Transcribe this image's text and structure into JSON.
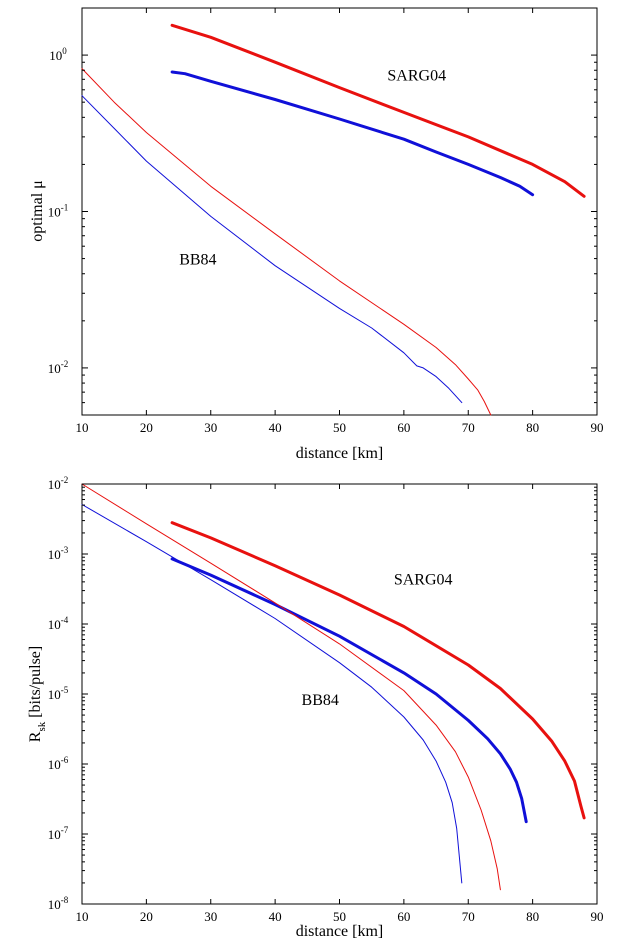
{
  "chart_data": [
    {
      "type": "line",
      "title": "",
      "xlabel": "distance [km]",
      "ylabel": "optimal μ",
      "yscale": "log",
      "xlim": [
        10,
        90
      ],
      "ylim": [
        0.005,
        2
      ],
      "xticks": [
        10,
        20,
        30,
        40,
        50,
        60,
        70,
        80,
        90
      ],
      "yticks": [
        {
          "value": 0.01,
          "base": "10",
          "exp": "-2"
        },
        {
          "value": 0.1,
          "base": "10",
          "exp": "-1"
        },
        {
          "value": 1,
          "base": "10",
          "exp": "0"
        }
      ],
      "grid": false,
      "annotations": [
        {
          "text": "SARG04",
          "x": 62,
          "y": 0.75
        },
        {
          "text": "BB84",
          "x": 28,
          "y": 0.05
        }
      ],
      "series": [
        {
          "color": "#e8110f",
          "width": 3,
          "x": [
            24,
            30,
            40,
            50,
            60,
            70,
            80,
            85,
            88
          ],
          "y": [
            1.55,
            1.3,
            0.9,
            0.62,
            0.43,
            0.3,
            0.2,
            0.155,
            0.125
          ]
        },
        {
          "color": "#1010d8",
          "width": 3,
          "x": [
            24,
            26,
            30,
            40,
            50,
            60,
            65,
            70,
            75,
            78,
            80
          ],
          "y": [
            0.78,
            0.76,
            0.68,
            0.52,
            0.39,
            0.29,
            0.24,
            0.2,
            0.165,
            0.145,
            0.128
          ]
        },
        {
          "color": "#e8110f",
          "width": 1,
          "x": [
            10,
            15,
            20,
            30,
            40,
            50,
            60,
            65,
            68,
            70,
            71.5,
            72.5,
            73.5
          ],
          "y": [
            0.82,
            0.5,
            0.32,
            0.145,
            0.072,
            0.036,
            0.019,
            0.0135,
            0.0105,
            0.0085,
            0.0072,
            0.0061,
            0.005
          ]
        },
        {
          "color": "#1010d8",
          "width": 1,
          "x": [
            10,
            15,
            20,
            30,
            40,
            50,
            55,
            60,
            62,
            63,
            65,
            67,
            69
          ],
          "y": [
            0.55,
            0.34,
            0.21,
            0.093,
            0.045,
            0.024,
            0.018,
            0.0125,
            0.0103,
            0.01,
            0.0088,
            0.0074,
            0.006
          ]
        }
      ]
    },
    {
      "type": "line",
      "title": "",
      "xlabel": "distance [km]",
      "ylabel_main": "R",
      "ylabel_sub": "sk",
      "ylabel_rest": "[bits/pulse]",
      "yscale": "log",
      "xlim": [
        10,
        90
      ],
      "ylim": [
        1e-08,
        0.01
      ],
      "xticks": [
        10,
        20,
        30,
        40,
        50,
        60,
        70,
        80,
        90
      ],
      "yticks": [
        {
          "value": 1e-08,
          "base": "10",
          "exp": "-8"
        },
        {
          "value": 1e-07,
          "base": "10",
          "exp": "-7"
        },
        {
          "value": 1e-06,
          "base": "10",
          "exp": "-6"
        },
        {
          "value": 1e-05,
          "base": "10",
          "exp": "-5"
        },
        {
          "value": 0.0001,
          "base": "10",
          "exp": "-4"
        },
        {
          "value": 0.001,
          "base": "10",
          "exp": "-3"
        },
        {
          "value": 0.01,
          "base": "10",
          "exp": "-2"
        }
      ],
      "grid": false,
      "annotations": [
        {
          "text": "SARG04",
          "x": 63,
          "y": 0.00045
        },
        {
          "text": "BB84",
          "x": 47,
          "y": 8.5e-06
        }
      ],
      "series": [
        {
          "color": "#e8110f",
          "width": 3,
          "x": [
            24,
            30,
            40,
            50,
            60,
            70,
            75,
            80,
            83,
            85,
            86.5,
            87.5,
            88
          ],
          "y": [
            0.0028,
            0.0017,
            0.00068,
            0.00026,
            9.2e-05,
            2.6e-05,
            1.2e-05,
            4.4e-06,
            2.1e-06,
            1.1e-06,
            5.7e-07,
            2.5e-07,
            1.7e-07
          ]
        },
        {
          "color": "#1010d8",
          "width": 3,
          "x": [
            24,
            30,
            40,
            50,
            60,
            65,
            70,
            73,
            75,
            76.5,
            77.5,
            78.3,
            79
          ],
          "y": [
            0.00085,
            0.0005,
            0.00019,
            6.7e-05,
            2e-05,
            1e-05,
            4.2e-06,
            2.3e-06,
            1.4e-06,
            8.5e-07,
            5.5e-07,
            3.2e-07,
            1.5e-07
          ]
        },
        {
          "color": "#e8110f",
          "width": 1,
          "x": [
            10,
            20,
            30,
            40,
            50,
            60,
            65,
            68,
            70,
            72,
            73.5,
            74.5,
            75
          ],
          "y": [
            0.01,
            0.0027,
            0.00074,
            0.0002,
            5.2e-05,
            1.12e-05,
            3.6e-06,
            1.5e-06,
            6.5e-07,
            2.2e-07,
            8e-08,
            3.2e-08,
            1.6e-08
          ]
        },
        {
          "color": "#1010d8",
          "width": 1,
          "x": [
            10,
            20,
            30,
            40,
            50,
            55,
            60,
            63,
            65,
            66.5,
            67.5,
            68.2,
            69
          ],
          "y": [
            0.0051,
            0.0015,
            0.00043,
            0.00012,
            2.8e-05,
            1.25e-05,
            4.7e-06,
            2.2e-06,
            1.1e-06,
            5.5e-07,
            2.8e-07,
            1.2e-07,
            2e-08
          ]
        }
      ]
    }
  ]
}
